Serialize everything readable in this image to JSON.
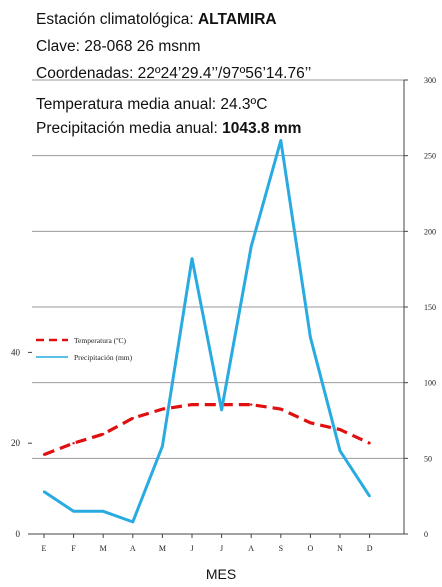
{
  "header": {
    "station_label": "Estación climatológica:",
    "station_name": "ALTAMIRA",
    "code_line": "Clave: 28-068  26 msnm",
    "coords_line": "Coordenadas:  22º24’29.4’’/97º56’14.76’’",
    "temp_line": "Temperatura media anual:  24.3ºC",
    "precip_label": "Precipitación media anual:",
    "precip_value": "1043.8 mm"
  },
  "chart_data": {
    "type": "line",
    "categories": [
      "E",
      "F",
      "M",
      "A",
      "M",
      "J",
      "J",
      "A",
      "S",
      "O",
      "N",
      "D"
    ],
    "xlabel": "MES",
    "series": [
      {
        "name": "Temperatura (ºC)",
        "axis": "left",
        "color": "#e01010",
        "style": "dashed",
        "values": [
          17.5,
          20,
          22,
          25.5,
          27.5,
          28.5,
          28.5,
          28.5,
          27.5,
          24.5,
          23,
          20
        ]
      },
      {
        "name": "Precipitación (mm)",
        "axis": "right",
        "color": "#29abe2",
        "style": "solid",
        "values": [
          28,
          15,
          15,
          8,
          58,
          182,
          82,
          190,
          260,
          130,
          55,
          25
        ]
      }
    ],
    "y_left": {
      "ticks": [
        0,
        20,
        40
      ],
      "range": [
        0,
        100
      ]
    },
    "y_right": {
      "ticks": [
        0,
        50,
        100,
        150,
        200,
        250,
        300
      ],
      "range": [
        0,
        300
      ]
    },
    "grid": true,
    "legend": "left-middle"
  }
}
